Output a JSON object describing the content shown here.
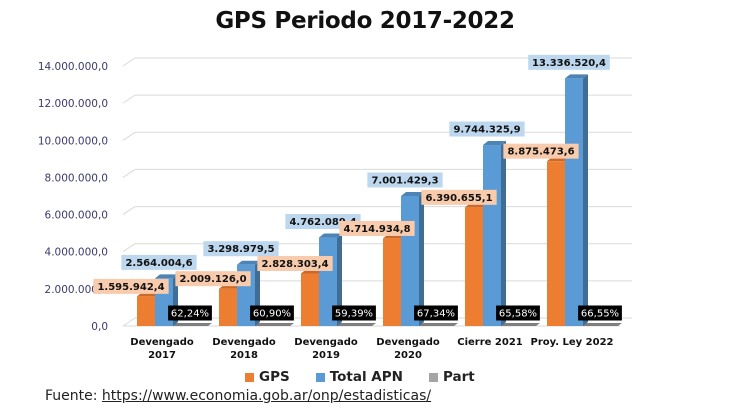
{
  "chart_data": {
    "type": "bar",
    "title": "GPS Periodo 2017-2022",
    "xlabel": "",
    "ylabel": "",
    "ylim": [
      0,
      14000000
    ],
    "yticks": [
      0,
      2000000,
      4000000,
      6000000,
      8000000,
      10000000,
      12000000,
      14000000
    ],
    "ytick_labels": [
      "0,0",
      "2.000.000,0",
      "4.000.000,0",
      "6.000.000,0",
      "8.000.000,0",
      "10.000.000,0",
      "12.000.000,0",
      "14.000.000,0"
    ],
    "grid": true,
    "style": "3d-clustered-column",
    "categories": [
      [
        "Devengado",
        "2017"
      ],
      [
        "Devengado",
        "2018"
      ],
      [
        "Devengado",
        "2019"
      ],
      [
        "Devengado",
        "2020"
      ],
      [
        "Cierre 2021"
      ],
      [
        "Proy. Ley 2022"
      ]
    ],
    "series": [
      {
        "name": "GPS",
        "color": "#ed7d31",
        "label_bg": "#f8cbad",
        "values": [
          1595942.4,
          2009126.0,
          2828303.4,
          4714934.8,
          6390655.1,
          8875473.6
        ],
        "labels": [
          "1.595.942,4",
          "2.009.126,0",
          "2.828.303,4",
          "4.714.934,8",
          "6.390.655,1",
          "8.875.473,6"
        ]
      },
      {
        "name": "Total APN",
        "color": "#5b9bd5",
        "label_bg": "#bdd7ee",
        "values": [
          2564004.6,
          3298979.5,
          4762089.4,
          7001429.3,
          9744325.9,
          13336520.4
        ],
        "labels": [
          "2.564.004,6",
          "3.298.979,5",
          "4.762.089,4",
          "7.001.429,3",
          "9.744.325,9",
          "13.336.520,4"
        ]
      },
      {
        "name": "Part",
        "color": "#a5a5a5",
        "label_bg": "#000000",
        "values": [
          62.24,
          60.9,
          59.39,
          67.34,
          65.58,
          66.55
        ],
        "labels": [
          "62,24%",
          "60,90%",
          "59,39%",
          "67,34%",
          "65,58%",
          "66,55%"
        ]
      }
    ],
    "legend": {
      "position": "bottom",
      "entries": [
        "GPS",
        "Total APN",
        "Part"
      ]
    }
  },
  "footer": {
    "source_prefix": "Fuente: ",
    "source_link": "https://www.economia.gob.ar/onp/estadisticas/"
  }
}
